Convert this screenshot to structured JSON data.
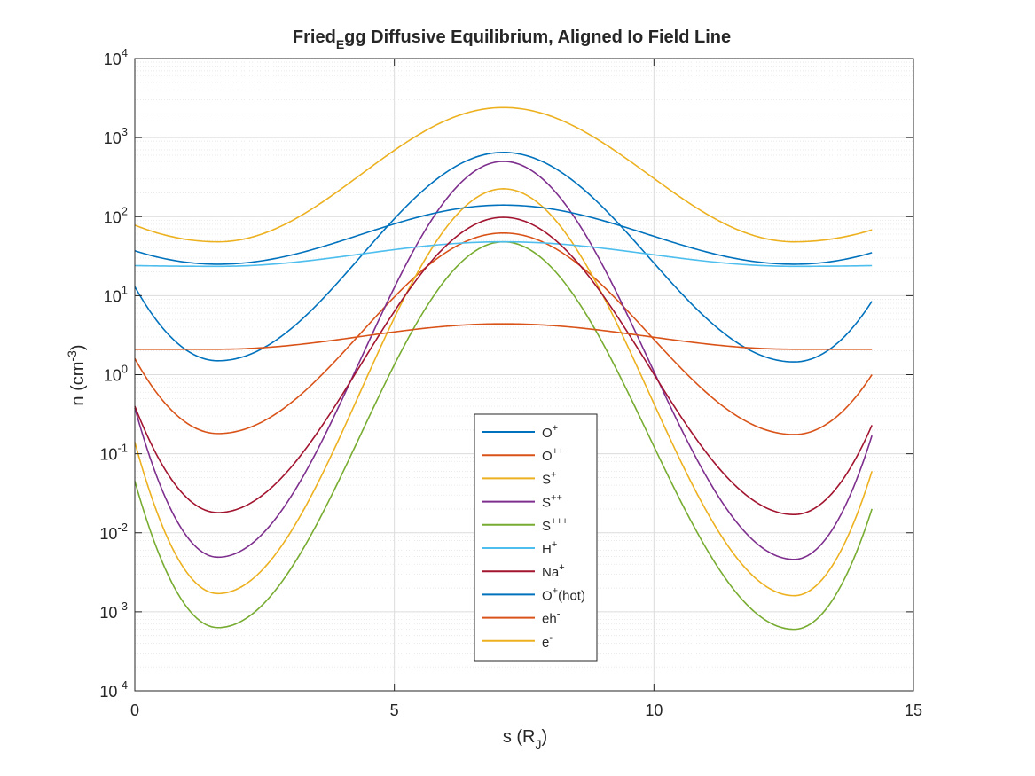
{
  "chart_data": {
    "type": "line",
    "title": "FriedEgg Diffusive Equilibrium, Aligned Io Field Line",
    "title_parts": {
      "main": "Fried",
      "sub": "E",
      "rest": "gg Diffusive Equilibrium, Aligned Io Field Line"
    },
    "xlabel": "s (R_J)",
    "xlabel_parts": {
      "main": "s (R",
      "sub": "J",
      "rest": ")"
    },
    "ylabel": "n (cm^-3)",
    "ylabel_parts": {
      "main": "n (cm",
      "sup": "-3",
      "rest": ")"
    },
    "xlim": [
      0,
      15
    ],
    "ylim": [
      0.0001,
      10000
    ],
    "yscale": "log",
    "grid": true,
    "minor_grid": true,
    "legend_position": "lower-center",
    "xticks": [
      {
        "value": 0,
        "label": "0"
      },
      {
        "value": 5,
        "label": "5"
      },
      {
        "value": 10,
        "label": "10"
      },
      {
        "value": 15,
        "label": "15"
      }
    ],
    "yticks": [
      {
        "value": 0.0001,
        "base": "10",
        "exp": "-4"
      },
      {
        "value": 0.001,
        "base": "10",
        "exp": "-3"
      },
      {
        "value": 0.01,
        "base": "10",
        "exp": "-2"
      },
      {
        "value": 0.1,
        "base": "10",
        "exp": "-1"
      },
      {
        "value": 1,
        "base": "10",
        "exp": "0"
      },
      {
        "value": 10,
        "base": "10",
        "exp": "1"
      },
      {
        "value": 100,
        "base": "10",
        "exp": "2"
      },
      {
        "value": 1000,
        "base": "10",
        "exp": "3"
      },
      {
        "value": 10000,
        "base": "10",
        "exp": "4"
      }
    ],
    "x": [
      0,
      1.6,
      7.1,
      12.7,
      14.2
    ],
    "series": [
      {
        "name": "O+",
        "label_base": "O",
        "label_sup": "+",
        "label_rest": "",
        "color": "#0072BD",
        "values": [
          13.0,
          1.5,
          650,
          1.45,
          8.5
        ]
      },
      {
        "name": "O++",
        "label_base": "O",
        "label_sup": "++",
        "label_rest": "",
        "color": "#D95319",
        "values": [
          1.6,
          0.18,
          62,
          0.175,
          1.0
        ]
      },
      {
        "name": "S+",
        "label_base": "S",
        "label_sup": "+",
        "label_rest": "",
        "color": "#EDB120",
        "values": [
          0.14,
          0.0017,
          225,
          0.0016,
          0.06
        ]
      },
      {
        "name": "S++",
        "label_base": "S",
        "label_sup": "++",
        "label_rest": "",
        "color": "#7E2F8E",
        "values": [
          0.38,
          0.0049,
          500,
          0.0046,
          0.17
        ]
      },
      {
        "name": "S+++",
        "label_base": "S",
        "label_sup": "+++",
        "label_rest": "",
        "color": "#77AC30",
        "values": [
          0.045,
          0.00063,
          48,
          0.0006,
          0.02
        ]
      },
      {
        "name": "H+",
        "label_base": "H",
        "label_sup": "+",
        "label_rest": "",
        "color": "#4DBEEE",
        "values": [
          24,
          23.5,
          48,
          23.5,
          24
        ]
      },
      {
        "name": "Na+",
        "label_base": "Na",
        "label_sup": "+",
        "label_rest": "",
        "color": "#A2142F",
        "values": [
          0.4,
          0.018,
          98,
          0.017,
          0.23
        ]
      },
      {
        "name": "O+(hot)",
        "label_base": "O",
        "label_sup": "+",
        "label_rest": "(hot)",
        "color": "#0072BD",
        "values": [
          37,
          25,
          140,
          25,
          35
        ]
      },
      {
        "name": "eh-",
        "label_base": "eh",
        "label_sup": "-",
        "label_rest": "",
        "color": "#D95319",
        "values": [
          2.1,
          2.1,
          4.4,
          2.1,
          2.1
        ]
      },
      {
        "name": "e-",
        "label_base": "e",
        "label_sup": "-",
        "label_rest": "",
        "color": "#EDB120",
        "values": [
          78,
          48,
          2400,
          48,
          68
        ]
      }
    ]
  }
}
